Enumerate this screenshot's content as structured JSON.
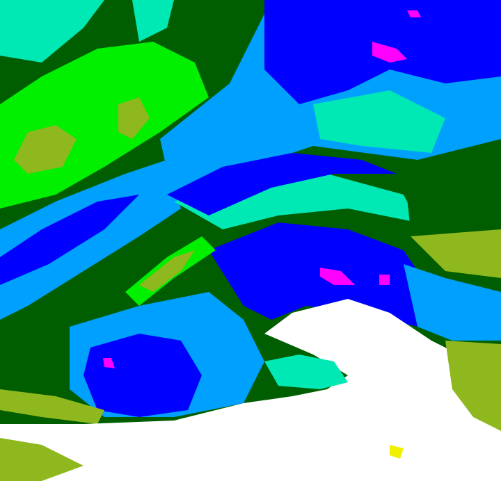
{
  "image": {
    "kind": "false-color satellite imagery",
    "palette": {
      "dark_green": "#005e00",
      "bright_green": "#00f000",
      "olive": "#8fb81e",
      "aqua": "#00e8b4",
      "light_blue": "#00a0ff",
      "blue": "#0000ff",
      "magenta": "#ff00ff",
      "white": "#ffffff",
      "yellow": "#f0f000"
    }
  }
}
